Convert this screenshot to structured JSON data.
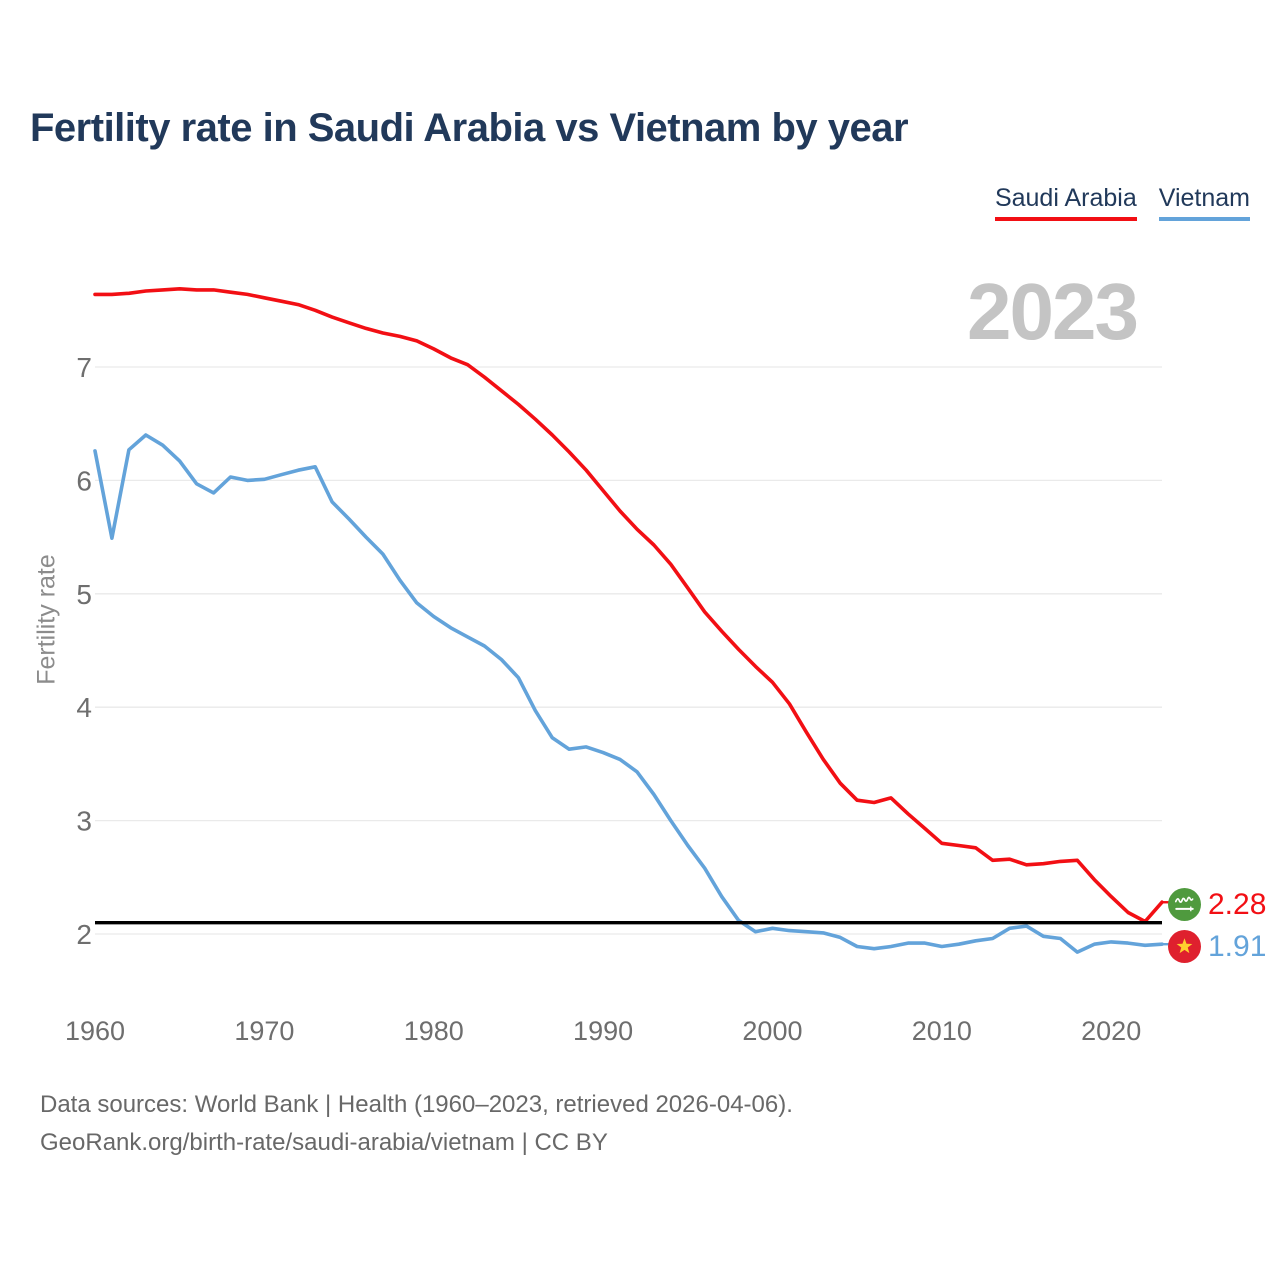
{
  "header": {
    "title": "Fertility rate in Saudi Arabia vs Vietnam by year"
  },
  "watermark": "2023",
  "legend": {
    "items": [
      {
        "label": "Saudi Arabia",
        "color": "#f20f14"
      },
      {
        "label": "Vietnam",
        "color": "#63a3da"
      }
    ]
  },
  "end_labels": [
    {
      "country": "Saudi Arabia",
      "flag": "saudi-arabia-flag",
      "value": "2.28",
      "color": "#f20f14"
    },
    {
      "country": "Vietnam",
      "flag": "vietnam-flag",
      "value": "1.91",
      "color": "#63a3da"
    }
  ],
  "footer": {
    "line1": "Data sources: World Bank | Health (1960–2023, retrieved 2026-04-06).",
    "line2": "GeoRank.org/birth-rate/saudi-arabia/vietnam | CC BY"
  },
  "chart_data": {
    "type": "line",
    "title": "Fertility rate in Saudi Arabia vs Vietnam by year",
    "xlabel": "",
    "ylabel": "Fertility rate",
    "x_ticks": [
      1960,
      1970,
      1980,
      1990,
      2000,
      2010,
      2020
    ],
    "y_ticks": [
      2,
      3,
      4,
      5,
      6,
      7
    ],
    "x_range": [
      1960,
      2023
    ],
    "grid": true,
    "legend_position": "top-right",
    "reference_line": {
      "value": 2.1,
      "color": "#000000"
    },
    "x": [
      1960,
      1961,
      1962,
      1963,
      1964,
      1965,
      1966,
      1967,
      1968,
      1969,
      1970,
      1971,
      1972,
      1973,
      1974,
      1975,
      1976,
      1977,
      1978,
      1979,
      1980,
      1981,
      1982,
      1983,
      1984,
      1985,
      1986,
      1987,
      1988,
      1989,
      1990,
      1991,
      1992,
      1993,
      1994,
      1995,
      1996,
      1997,
      1998,
      1999,
      2000,
      2001,
      2002,
      2003,
      2004,
      2005,
      2006,
      2007,
      2008,
      2009,
      2010,
      2011,
      2012,
      2013,
      2014,
      2015,
      2016,
      2017,
      2018,
      2019,
      2020,
      2021,
      2022,
      2023
    ],
    "series": [
      {
        "name": "Saudi Arabia",
        "color": "#f20f14",
        "end_value": 2.28,
        "values": [
          7.64,
          7.64,
          7.65,
          7.67,
          7.68,
          7.69,
          7.68,
          7.68,
          7.66,
          7.64,
          7.61,
          7.58,
          7.55,
          7.5,
          7.44,
          7.39,
          7.34,
          7.3,
          7.27,
          7.23,
          7.16,
          7.08,
          7.02,
          6.91,
          6.79,
          6.67,
          6.54,
          6.4,
          6.25,
          6.09,
          5.91,
          5.73,
          5.57,
          5.43,
          5.26,
          5.05,
          4.84,
          4.67,
          4.51,
          4.36,
          4.22,
          4.03,
          3.78,
          3.54,
          3.33,
          3.18,
          3.16,
          3.2,
          3.06,
          2.93,
          2.8,
          2.78,
          2.76,
          2.65,
          2.66,
          2.61,
          2.62,
          2.64,
          2.65,
          2.48,
          2.33,
          2.19,
          2.11,
          2.28
        ]
      },
      {
        "name": "Vietnam",
        "color": "#63a3da",
        "end_value": 1.91,
        "values": [
          6.26,
          5.49,
          6.27,
          6.4,
          6.31,
          6.17,
          5.97,
          5.89,
          6.03,
          6.0,
          6.01,
          6.05,
          6.09,
          6.12,
          5.81,
          5.66,
          5.5,
          5.35,
          5.12,
          4.92,
          4.8,
          4.7,
          4.62,
          4.54,
          4.42,
          4.26,
          3.97,
          3.73,
          3.63,
          3.65,
          3.6,
          3.54,
          3.43,
          3.23,
          3.0,
          2.78,
          2.58,
          2.33,
          2.12,
          2.02,
          2.05,
          2.03,
          2.02,
          2.01,
          1.97,
          1.89,
          1.87,
          1.89,
          1.92,
          1.92,
          1.89,
          1.91,
          1.94,
          1.96,
          2.05,
          2.07,
          1.98,
          1.96,
          1.84,
          1.91,
          1.93,
          1.92,
          1.9,
          1.91
        ]
      }
    ]
  }
}
